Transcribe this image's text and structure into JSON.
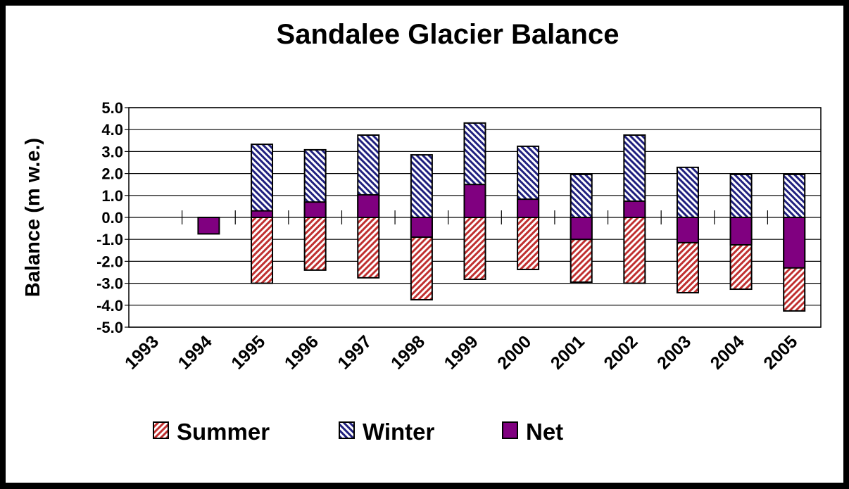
{
  "chart_data": {
    "type": "bar",
    "title": "Sandalee Glacier Balance",
    "xlabel": "",
    "ylabel": "Balance (m w.e.)",
    "ylim": [
      -5.0,
      5.0
    ],
    "yticks": [
      "5.0",
      "4.0",
      "3.0",
      "2.0",
      "1.0",
      "0.0",
      "-1.0",
      "-2.0",
      "-3.0",
      "-4.0",
      "-5.0"
    ],
    "grid": true,
    "legend_position": "bottom",
    "categories": [
      "1993",
      "1994",
      "1995",
      "1996",
      "1997",
      "1998",
      "1999",
      "2000",
      "2001",
      "2002",
      "2003",
      "2004",
      "2005"
    ],
    "series": [
      {
        "name": "Summer",
        "color": "#c03030",
        "values": [
          null,
          null,
          -3.0,
          -2.4,
          -2.75,
          -3.75,
          -2.82,
          -2.37,
          -2.95,
          -3.0,
          -3.43,
          -3.27,
          -4.26
        ]
      },
      {
        "name": "Winter",
        "color": "#20207f",
        "values": [
          null,
          null,
          3.33,
          3.08,
          3.75,
          2.85,
          4.3,
          3.24,
          1.96,
          3.75,
          2.28,
          1.96,
          1.96
        ]
      },
      {
        "name": "Net",
        "color": "#800080",
        "values": [
          null,
          -0.75,
          0.3,
          0.7,
          1.03,
          -0.9,
          1.5,
          0.83,
          -1.0,
          0.74,
          -1.15,
          -1.25,
          -2.3
        ]
      }
    ]
  }
}
